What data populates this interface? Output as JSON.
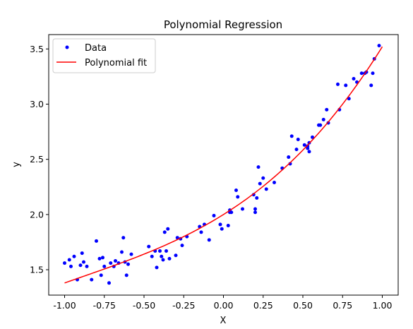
{
  "chart_data": {
    "type": "scatter",
    "title": "Polynomial Regression",
    "xlabel": "X",
    "ylabel": "y",
    "xlim": [
      -1.1,
      1.1
    ],
    "ylim": [
      1.27,
      3.63
    ],
    "xticks": [
      "-1.00",
      "-0.75",
      "-0.50",
      "-0.25",
      "0.00",
      "0.25",
      "0.50",
      "0.75",
      "1.00"
    ],
    "yticks": [
      "1.5",
      "2.0",
      "2.5",
      "3.0",
      "3.5"
    ],
    "grid": false,
    "legend_position": "top-left",
    "series": [
      {
        "name": "Data",
        "kind": "scatter",
        "color": "#0000ff",
        "x": [
          -1.0,
          -0.97,
          -0.96,
          -0.94,
          -0.92,
          -0.9,
          -0.89,
          -0.88,
          -0.86,
          -0.83,
          -0.8,
          -0.78,
          -0.77,
          -0.76,
          -0.75,
          -0.72,
          -0.71,
          -0.69,
          -0.68,
          -0.66,
          -0.64,
          -0.63,
          -0.62,
          -0.61,
          -0.6,
          -0.58,
          -0.47,
          -0.45,
          -0.43,
          -0.42,
          -0.4,
          -0.39,
          -0.38,
          -0.37,
          -0.36,
          -0.35,
          -0.34,
          -0.3,
          -0.29,
          -0.27,
          -0.26,
          -0.23,
          -0.15,
          -0.14,
          -0.12,
          -0.09,
          -0.06,
          -0.02,
          -0.01,
          0.03,
          0.04,
          0.04,
          0.05,
          0.08,
          0.09,
          0.12,
          0.19,
          0.2,
          0.2,
          0.21,
          0.22,
          0.23,
          0.25,
          0.27,
          0.32,
          0.37,
          0.41,
          0.42,
          0.43,
          0.46,
          0.47,
          0.51,
          0.53,
          0.53,
          0.54,
          0.54,
          0.56,
          0.6,
          0.61,
          0.63,
          0.65,
          0.66,
          0.72,
          0.73,
          0.77,
          0.79,
          0.82,
          0.84,
          0.87,
          0.89,
          0.9,
          0.93,
          0.94,
          0.95,
          0.98
        ],
        "y": [
          1.56,
          1.59,
          1.53,
          1.62,
          1.41,
          1.54,
          1.65,
          1.57,
          1.53,
          1.41,
          1.76,
          1.6,
          1.45,
          1.61,
          1.53,
          1.38,
          1.56,
          1.53,
          1.58,
          1.56,
          1.66,
          1.79,
          1.57,
          1.45,
          1.55,
          1.64,
          1.71,
          1.62,
          1.67,
          1.52,
          1.67,
          1.62,
          1.59,
          1.84,
          1.67,
          1.87,
          1.6,
          1.63,
          1.79,
          1.78,
          1.72,
          1.8,
          1.89,
          1.84,
          1.91,
          1.77,
          1.99,
          1.91,
          1.87,
          1.9,
          2.04,
          2.02,
          2.02,
          2.22,
          2.16,
          2.05,
          2.18,
          2.02,
          2.05,
          2.15,
          2.43,
          2.28,
          2.33,
          2.23,
          2.29,
          2.42,
          2.52,
          2.46,
          2.71,
          2.59,
          2.68,
          2.63,
          2.6,
          2.62,
          2.65,
          2.57,
          2.7,
          2.81,
          2.81,
          2.86,
          2.95,
          2.83,
          3.18,
          2.95,
          3.17,
          3.05,
          3.23,
          3.2,
          3.28,
          3.28,
          3.29,
          3.17,
          3.28,
          3.41,
          3.53
        ]
      },
      {
        "name": "Polynomial fit",
        "kind": "line",
        "color": "#ff0000",
        "coefficients": [
          2.0,
          0.9,
          0.45,
          0.17
        ]
      }
    ]
  }
}
